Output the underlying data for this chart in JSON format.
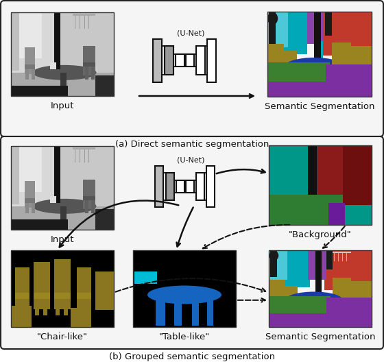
{
  "fig_width": 5.6,
  "fig_height": 5.28,
  "dpi": 100,
  "bg_color": "#ffffff",
  "panel_a_label": "(a) Direct semantic segmentation",
  "panel_b_label": "(b) Grouped semantic segmentation",
  "unet_label": "(U-Net)",
  "input_label": "Input",
  "sem_seg_label": "Semantic Segmentation",
  "background_label": "\"Background\"",
  "chair_label": "\"Chair-like\"",
  "table_label": "\"Table-like\"",
  "sem_seg_label2": "Semantic Segmentation"
}
